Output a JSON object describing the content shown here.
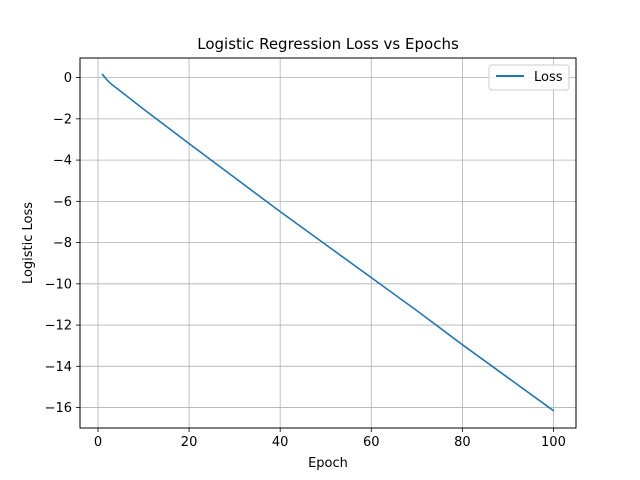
{
  "chart_data": {
    "type": "line",
    "title": "Logistic Regression Loss vs Epochs",
    "xlabel": "Epoch",
    "ylabel": "Logistic Loss",
    "xlim": [
      -3.95,
      104.95
    ],
    "ylim": [
      -16.99,
      0.95
    ],
    "xticks": [
      0,
      20,
      40,
      60,
      80,
      100
    ],
    "yticks": [
      0,
      -2,
      -4,
      -6,
      -8,
      -10,
      -12,
      -14,
      -16
    ],
    "grid": true,
    "legend_position": "top-right",
    "series": [
      {
        "name": "Loss",
        "color": "#1f77b4",
        "x": [
          1,
          2,
          3,
          5,
          10,
          20,
          30,
          40,
          50,
          60,
          70,
          80,
          90,
          100
        ],
        "y": [
          0.15,
          -0.12,
          -0.33,
          -0.67,
          -1.53,
          -3.2,
          -4.85,
          -6.5,
          -8.1,
          -9.7,
          -11.3,
          -12.95,
          -14.55,
          -16.15
        ]
      }
    ]
  }
}
